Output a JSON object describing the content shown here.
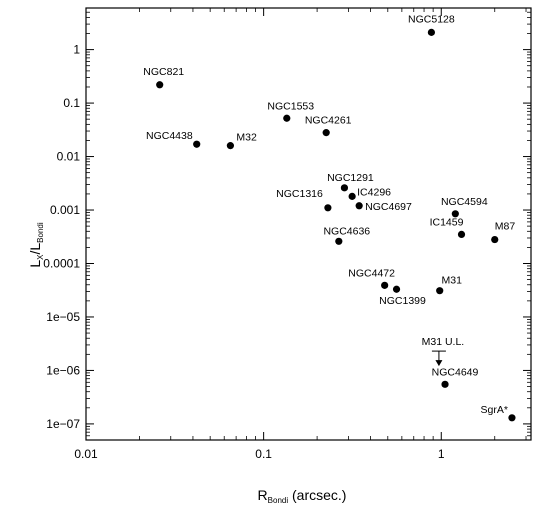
{
  "chart_data": {
    "type": "scatter",
    "xscale": "log",
    "yscale": "log",
    "xlim": [
      0.01,
      3.2
    ],
    "ylim": [
      5e-08,
      6
    ],
    "grid": false,
    "xlabel": {
      "main": "R",
      "sub": "Bondi",
      "rest": " (arcsec.)"
    },
    "ylabel": {
      "main": "L",
      "sub1": "X",
      "mid": "/L",
      "sub2": "Bondi"
    },
    "x_ticks": [
      {
        "value": 0.01,
        "label": "0.01"
      },
      {
        "value": 0.1,
        "label": "0.1"
      },
      {
        "value": 1,
        "label": "1"
      }
    ],
    "y_ticks": [
      {
        "value": 1,
        "label": "1"
      },
      {
        "value": 0.1,
        "label": "0.1"
      },
      {
        "value": 0.01,
        "label": "0.01"
      },
      {
        "value": 0.001,
        "label": "0.001"
      },
      {
        "value": 0.0001,
        "label": "0.0001"
      },
      {
        "value": 1e-05,
        "label": "1e−05"
      },
      {
        "value": 1e-06,
        "label": "1e−06"
      },
      {
        "value": 1e-07,
        "label": "1e−07"
      }
    ],
    "points": [
      {
        "name": "NGC5128",
        "x": 0.88,
        "y": 2.1
      },
      {
        "name": "NGC821",
        "x": 0.026,
        "y": 0.22
      },
      {
        "name": "NGC1553",
        "x": 0.135,
        "y": 0.052
      },
      {
        "name": "NGC4261",
        "x": 0.225,
        "y": 0.028
      },
      {
        "name": "NGC4438",
        "x": 0.042,
        "y": 0.017
      },
      {
        "name": "M32",
        "x": 0.065,
        "y": 0.016
      },
      {
        "name": "NGC1291",
        "x": 0.285,
        "y": 0.0026
      },
      {
        "name": "IC4296",
        "x": 0.315,
        "y": 0.0018
      },
      {
        "name": "NGC4697",
        "x": 0.345,
        "y": 0.0012
      },
      {
        "name": "NGC1316",
        "x": 0.23,
        "y": 0.0011
      },
      {
        "name": "NGC4594",
        "x": 1.2,
        "y": 0.00085
      },
      {
        "name": "IC1459",
        "x": 1.3,
        "y": 0.00035
      },
      {
        "name": "M87",
        "x": 2.0,
        "y": 0.00028
      },
      {
        "name": "NGC4636",
        "x": 0.265,
        "y": 0.00026
      },
      {
        "name": "NGC4472",
        "x": 0.48,
        "y": 3.9e-05
      },
      {
        "name": "NGC1399",
        "x": 0.56,
        "y": 3.3e-05
      },
      {
        "name": "M31",
        "x": 0.98,
        "y": 3.1e-05
      },
      {
        "name": "NGC4649",
        "x": 1.05,
        "y": 5.5e-07
      },
      {
        "name": "SgrA*",
        "x": 2.5,
        "y": 1.3e-07
      }
    ],
    "upper_limits": [
      {
        "name": "M31 U.L.",
        "x": 0.97,
        "y": 2.3e-06
      }
    ]
  }
}
